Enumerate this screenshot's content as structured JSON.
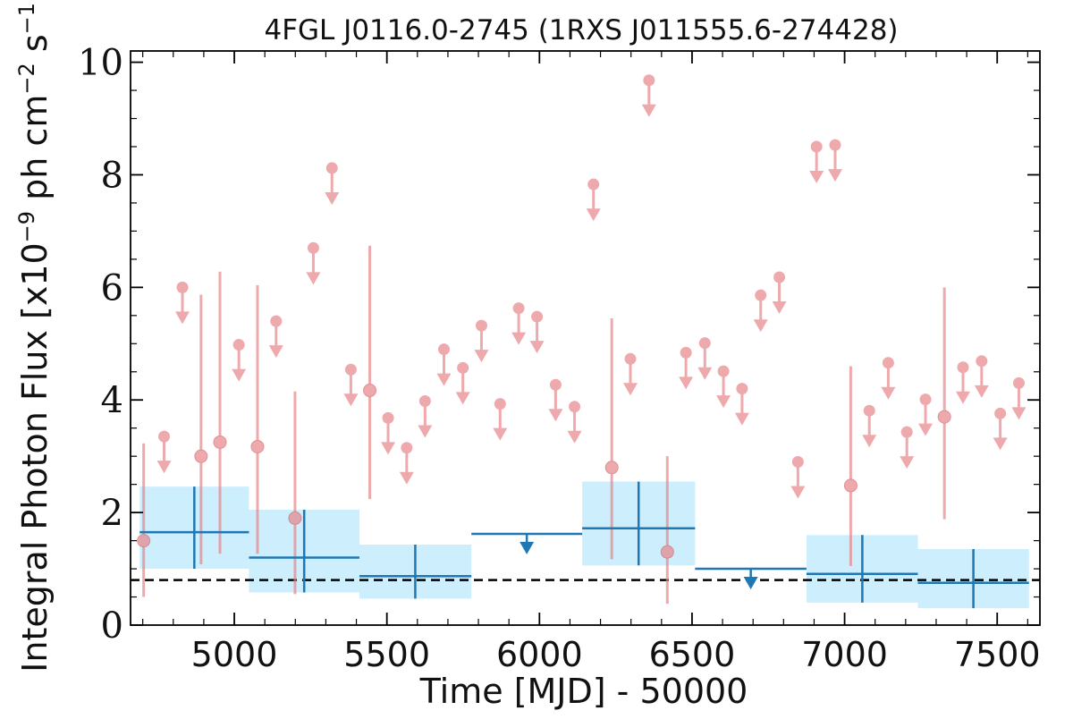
{
  "chart_data": {
    "type": "scatter",
    "title": "4FGL J0116.0-2745 (1RXS J011555.6-274428)",
    "xlabel": "Time [MJD] - 50000",
    "ylabel": "Integral Photon Flux [x10^-9 ph cm^-2 s^-1]",
    "ylabel_parts": {
      "prefix": "Integral Photon Flux [x10",
      "exp1": "−9",
      "mid1": " ph cm",
      "exp2": "−2",
      "mid2": " s",
      "exp3": "−1",
      "suffix": "]"
    },
    "xlim": [
      4660,
      7640
    ],
    "ylim": [
      0,
      10.2
    ],
    "xticks": [
      5000,
      5500,
      6000,
      6500,
      7000,
      7500
    ],
    "yticks": [
      0,
      2,
      4,
      6,
      8,
      10
    ],
    "grid": false,
    "reference_line": {
      "y": 0.8,
      "style": "dashed",
      "color": "#000000"
    },
    "colors": {
      "monthly": "#e8858a",
      "binned": "#1f77b4",
      "binned_band": "#cdeefc"
    },
    "series": [
      {
        "kind": "monthly_detections",
        "points": [
          {
            "x": 4703,
            "y": 1.5,
            "yerr_low": 1.0,
            "yerr_high": 1.73
          },
          {
            "x": 4891,
            "y": 3.0,
            "yerr_low": 1.92,
            "yerr_high": 2.87
          },
          {
            "x": 4953,
            "y": 3.25,
            "yerr_low": 1.98,
            "yerr_high": 3.03
          },
          {
            "x": 5076,
            "y": 3.17,
            "yerr_low": 1.9,
            "yerr_high": 2.87
          },
          {
            "x": 5199,
            "y": 1.9,
            "yerr_low": 1.35,
            "yerr_high": 2.25
          },
          {
            "x": 5444,
            "y": 4.17,
            "yerr_low": 1.93,
            "yerr_high": 2.57
          },
          {
            "x": 6237,
            "y": 2.8,
            "yerr_low": 1.63,
            "yerr_high": 2.65
          },
          {
            "x": 6419,
            "y": 1.3,
            "yerr_low": 0.92,
            "yerr_high": 1.7
          },
          {
            "x": 7020,
            "y": 2.48,
            "yerr_low": 1.43,
            "yerr_high": 2.12
          },
          {
            "x": 7327,
            "y": 3.7,
            "yerr_low": 1.82,
            "yerr_high": 2.3
          }
        ]
      },
      {
        "kind": "monthly_upper_limits",
        "points": [
          {
            "x": 4770,
            "y": 3.35
          },
          {
            "x": 4830,
            "y": 6.0
          },
          {
            "x": 5015,
            "y": 4.98
          },
          {
            "x": 5137,
            "y": 5.4
          },
          {
            "x": 5259,
            "y": 6.7
          },
          {
            "x": 5320,
            "y": 8.12
          },
          {
            "x": 5382,
            "y": 4.54
          },
          {
            "x": 5504,
            "y": 3.68
          },
          {
            "x": 5565,
            "y": 3.15
          },
          {
            "x": 5625,
            "y": 3.98
          },
          {
            "x": 5687,
            "y": 4.9
          },
          {
            "x": 5749,
            "y": 4.57
          },
          {
            "x": 5810,
            "y": 5.32
          },
          {
            "x": 5871,
            "y": 3.93
          },
          {
            "x": 5932,
            "y": 5.63
          },
          {
            "x": 5992,
            "y": 5.48
          },
          {
            "x": 6053,
            "y": 4.27
          },
          {
            "x": 6115,
            "y": 3.88
          },
          {
            "x": 6177,
            "y": 7.83
          },
          {
            "x": 6298,
            "y": 4.73
          },
          {
            "x": 6359,
            "y": 9.68
          },
          {
            "x": 6480,
            "y": 4.84
          },
          {
            "x": 6542,
            "y": 5.01
          },
          {
            "x": 6603,
            "y": 4.51
          },
          {
            "x": 6664,
            "y": 4.2
          },
          {
            "x": 6725,
            "y": 5.86
          },
          {
            "x": 6786,
            "y": 6.18
          },
          {
            "x": 6847,
            "y": 2.9
          },
          {
            "x": 6908,
            "y": 8.5
          },
          {
            "x": 6969,
            "y": 8.53
          },
          {
            "x": 7081,
            "y": 3.81
          },
          {
            "x": 7143,
            "y": 4.66
          },
          {
            "x": 7204,
            "y": 3.43
          },
          {
            "x": 7265,
            "y": 4.01
          },
          {
            "x": 7388,
            "y": 4.58
          },
          {
            "x": 7449,
            "y": 4.69
          },
          {
            "x": 7510,
            "y": 3.76
          },
          {
            "x": 7571,
            "y": 4.3
          }
        ],
        "arrow_length": 0.62
      },
      {
        "kind": "binned_detections",
        "bins": [
          {
            "x_start": 4690,
            "x_end": 5048,
            "x_center": 4869,
            "y": 1.65,
            "y_low": 1.0,
            "y_high": 2.46
          },
          {
            "x_start": 5048,
            "x_end": 5410,
            "x_center": 5229,
            "y": 1.2,
            "y_low": 0.58,
            "y_high": 2.05
          },
          {
            "x_start": 5410,
            "x_end": 5777,
            "x_center": 5593,
            "y": 0.87,
            "y_low": 0.47,
            "y_high": 1.43
          },
          {
            "x_start": 6140,
            "x_end": 6510,
            "x_center": 6325,
            "y": 1.72,
            "y_low": 1.06,
            "y_high": 2.55
          },
          {
            "x_start": 6875,
            "x_end": 7240,
            "x_center": 7058,
            "y": 0.91,
            "y_low": 0.4,
            "y_high": 1.6
          },
          {
            "x_start": 7240,
            "x_end": 7604,
            "x_center": 7422,
            "y": 0.75,
            "y_low": 0.3,
            "y_high": 1.35
          }
        ]
      },
      {
        "kind": "binned_upper_limits",
        "bins": [
          {
            "x_start": 5777,
            "x_end": 6140,
            "y": 1.62
          },
          {
            "x_start": 6510,
            "x_end": 6875,
            "y": 1.0
          }
        ],
        "arrow_length": 0.3
      }
    ]
  }
}
